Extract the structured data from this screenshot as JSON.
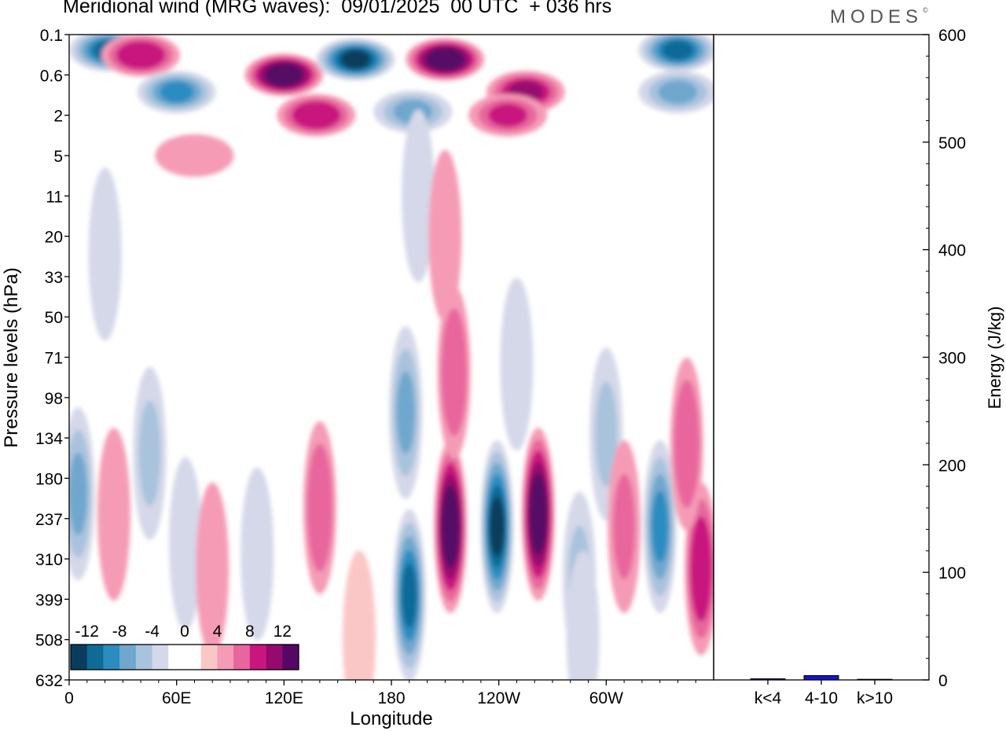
{
  "header": {
    "title": "Meridional wind (MRG waves):  09/01/2025  00 UTC  + 036 hrs",
    "brand": "MODES",
    "brand_mark": "©"
  },
  "chart_data": [
    {
      "type": "heatmap",
      "title": "Meridional wind (MRG waves):  09/01/2025  00 UTC  + 036 hrs",
      "xlabel": "Longitude",
      "ylabel": "Pressure levels (hPa)",
      "x_ticks": [
        "0",
        "60E",
        "120E",
        "180",
        "120W",
        "60W"
      ],
      "y_ticks": [
        "0.1",
        "0.6",
        "2",
        "5",
        "11",
        "20",
        "33",
        "50",
        "71",
        "98",
        "134",
        "180",
        "237",
        "310",
        "399",
        "508",
        "632"
      ],
      "colorbar": {
        "labels": [
          "-12",
          "-8",
          "-4",
          "0",
          "4",
          "8",
          "12"
        ],
        "colors": [
          "#0a3d5c",
          "#0f6b96",
          "#2b8cc0",
          "#6fa7cd",
          "#a9c3dd",
          "#d4d8e8",
          "#ffffff",
          "#ffffff",
          "#fbc6c6",
          "#f59bb5",
          "#e8669c",
          "#c9167f",
          "#960a6e",
          "#560765"
        ]
      },
      "features": [
        {
          "lon": 120,
          "level": 0.6,
          "v": 14
        },
        {
          "lon": 160,
          "level": 0.3,
          "v": -14
        },
        {
          "lon": 22,
          "level": 0.2,
          "v": -12
        },
        {
          "lon": 40,
          "level": 0.25,
          "v": 9
        },
        {
          "lon": 210,
          "level": 0.3,
          "v": 13
        },
        {
          "lon": 255,
          "level": 1.0,
          "v": 10
        },
        {
          "lon": 192,
          "level": 1.8,
          "v": -8
        },
        {
          "lon": 138,
          "level": 2.0,
          "v": 9
        },
        {
          "lon": 60,
          "level": 1.0,
          "v": -10
        },
        {
          "lon": 340,
          "level": 0.2,
          "v": -12
        },
        {
          "lon": 245,
          "level": 2.0,
          "v": 8
        },
        {
          "lon": 340,
          "level": 1.0,
          "v": -7
        },
        {
          "lon": 70,
          "level": 5,
          "v": 5
        },
        {
          "lon": 195,
          "level": 11,
          "v": -4
        },
        {
          "lon": 210,
          "level": 20,
          "v": 4
        },
        {
          "lon": 20,
          "level": 25,
          "v": -3
        },
        {
          "lon": 213,
          "level": 250,
          "v": 14
        },
        {
          "lon": 239,
          "level": 250,
          "v": -14
        },
        {
          "lon": 262,
          "level": 230,
          "v": 14
        },
        {
          "lon": 190,
          "level": 390,
          "v": -11
        },
        {
          "lon": 188,
          "level": 110,
          "v": -8
        },
        {
          "lon": 140,
          "level": 220,
          "v": 7
        },
        {
          "lon": 330,
          "level": 250,
          "v": -10
        },
        {
          "lon": 353,
          "level": 330,
          "v": 9
        },
        {
          "lon": 345,
          "level": 140,
          "v": 7
        },
        {
          "lon": 300,
          "level": 130,
          "v": -6
        },
        {
          "lon": 310,
          "level": 250,
          "v": 6
        },
        {
          "lon": 215,
          "level": 80,
          "v": 7
        },
        {
          "lon": 250,
          "level": 75,
          "v": -4
        },
        {
          "lon": 5,
          "level": 200,
          "v": -7
        },
        {
          "lon": 25,
          "level": 230,
          "v": 4
        },
        {
          "lon": 45,
          "level": 150,
          "v": -5
        },
        {
          "lon": 65,
          "level": 280,
          "v": -4
        },
        {
          "lon": 80,
          "level": 330,
          "v": 4
        },
        {
          "lon": 105,
          "level": 300,
          "v": -3
        },
        {
          "lon": 162,
          "level": 500,
          "v": 3
        },
        {
          "lon": 285,
          "level": 350,
          "v": -6
        },
        {
          "lon": 287,
          "level": 500,
          "v": -3
        }
      ]
    },
    {
      "type": "bar",
      "ylabel": "Energy (J/kg)",
      "categories": [
        "k<4",
        "4-10",
        "k>10"
      ],
      "values": [
        1,
        4,
        0
      ],
      "ylim": [
        0,
        600
      ],
      "y_ticks": [
        "0",
        "100",
        "200",
        "300",
        "400",
        "500",
        "600"
      ],
      "colors": {
        "bar": "#1515c8"
      }
    }
  ]
}
